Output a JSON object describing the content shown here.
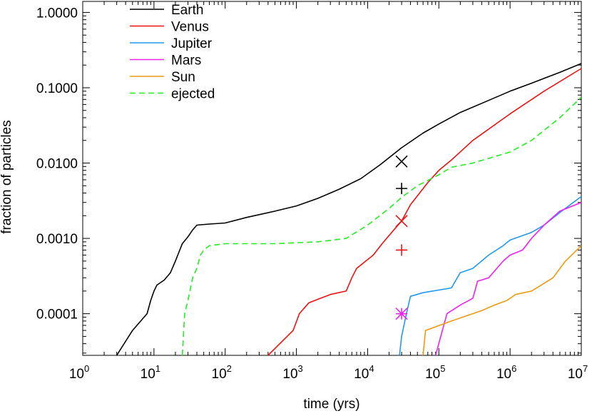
{
  "chart_data": {
    "type": "line",
    "title": "",
    "xlabel": "time (yrs)",
    "ylabel": "fraction of particles",
    "x_scale": "log",
    "y_scale": "log",
    "xlim": [
      1,
      10000000
    ],
    "ylim": [
      2.8e-05,
      1.4
    ],
    "grid": false,
    "legend_position": "top-left",
    "x_ticks": [
      {
        "value": 1,
        "base": "10",
        "exp": "0"
      },
      {
        "value": 10,
        "base": "10",
        "exp": "1"
      },
      {
        "value": 100,
        "base": "10",
        "exp": "2"
      },
      {
        "value": 1000,
        "base": "10",
        "exp": "3"
      },
      {
        "value": 10000,
        "base": "10",
        "exp": "4"
      },
      {
        "value": 100000,
        "base": "10",
        "exp": "5"
      },
      {
        "value": 1000000,
        "base": "10",
        "exp": "6"
      },
      {
        "value": 10000000,
        "base": "10",
        "exp": "7"
      }
    ],
    "y_ticks": [
      {
        "value": 0.0001,
        "label": "0.0001"
      },
      {
        "value": 0.001,
        "label": "0.0010"
      },
      {
        "value": 0.01,
        "label": "0.0100"
      },
      {
        "value": 0.1,
        "label": "0.1000"
      },
      {
        "value": 1,
        "label": "1.0000"
      }
    ],
    "series": [
      {
        "name": "Earth",
        "color": "#000000",
        "dash": false,
        "points": [
          [
            3,
            2.8e-05
          ],
          [
            5,
            6e-05
          ],
          [
            8,
            0.0001
          ],
          [
            9,
            0.00015
          ],
          [
            10,
            0.0002
          ],
          [
            11,
            0.00024
          ],
          [
            14,
            0.00028
          ],
          [
            17,
            0.00035
          ],
          [
            20,
            0.0005
          ],
          [
            25,
            0.00085
          ],
          [
            30,
            0.00105
          ],
          [
            35,
            0.0013
          ],
          [
            40,
            0.0015
          ],
          [
            60,
            0.00155
          ],
          [
            100,
            0.0016
          ],
          [
            200,
            0.0019
          ],
          [
            500,
            0.0023
          ],
          [
            1000,
            0.0027
          ],
          [
            2000,
            0.0034
          ],
          [
            4000,
            0.0045
          ],
          [
            8000,
            0.0062
          ],
          [
            15000,
            0.0095
          ],
          [
            30000,
            0.016
          ],
          [
            60000,
            0.025
          ],
          [
            100000,
            0.033
          ],
          [
            200000,
            0.047
          ],
          [
            500000,
            0.068
          ],
          [
            1000000,
            0.09
          ],
          [
            2000000,
            0.115
          ],
          [
            5000000,
            0.16
          ],
          [
            10000000,
            0.21
          ]
        ]
      },
      {
        "name": "Venus",
        "color": "#ee1111",
        "dash": false,
        "points": [
          [
            400,
            2.8e-05
          ],
          [
            900,
            6e-05
          ],
          [
            1100,
            0.0001
          ],
          [
            1500,
            0.00014
          ],
          [
            3000,
            0.00018
          ],
          [
            5000,
            0.0002
          ],
          [
            6000,
            0.0003
          ],
          [
            7000,
            0.0004
          ],
          [
            12000,
            0.0006
          ],
          [
            16000,
            0.00085
          ],
          [
            25000,
            0.0014
          ],
          [
            30000,
            0.0017
          ],
          [
            40000,
            0.0028
          ],
          [
            70000,
            0.0055
          ],
          [
            100000,
            0.008
          ],
          [
            150000,
            0.011
          ],
          [
            300000,
            0.02
          ],
          [
            1000000,
            0.045
          ],
          [
            3000000,
            0.09
          ],
          [
            10000000,
            0.18
          ]
        ]
      },
      {
        "name": "Jupiter",
        "color": "#2299ee",
        "dash": false,
        "points": [
          [
            28000,
            2.8e-05
          ],
          [
            30000,
            5e-05
          ],
          [
            35000,
            0.0001
          ],
          [
            40000,
            0.00017
          ],
          [
            60000,
            0.00019
          ],
          [
            150000,
            0.00022
          ],
          [
            200000,
            0.00035
          ],
          [
            300000,
            0.0004
          ],
          [
            500000,
            0.0006
          ],
          [
            800000,
            0.0008
          ],
          [
            1000000,
            0.00095
          ],
          [
            2000000,
            0.0012
          ],
          [
            3000000,
            0.0015
          ],
          [
            5000000,
            0.0022
          ],
          [
            10000000,
            0.0036
          ]
        ]
      },
      {
        "name": "Mars",
        "color": "#ee22ee",
        "dash": false,
        "points": [
          [
            90000,
            2.8e-05
          ],
          [
            130000,
            0.0001
          ],
          [
            200000,
            0.00013
          ],
          [
            300000,
            0.00016
          ],
          [
            350000,
            0.00027
          ],
          [
            500000,
            0.0003
          ],
          [
            800000,
            0.0005
          ],
          [
            1000000,
            0.0006
          ],
          [
            1500000,
            0.0007
          ],
          [
            2000000,
            0.001
          ],
          [
            3000000,
            0.0015
          ],
          [
            5000000,
            0.0023
          ],
          [
            10000000,
            0.003
          ]
        ]
      },
      {
        "name": "Sun",
        "color": "#ee9911",
        "dash": false,
        "points": [
          [
            60000,
            2.8e-05
          ],
          [
            65000,
            6e-05
          ],
          [
            150000,
            8e-05
          ],
          [
            400000,
            0.00011
          ],
          [
            600000,
            0.00013
          ],
          [
            900000,
            0.00015
          ],
          [
            1200000,
            0.00018
          ],
          [
            2000000,
            0.0002
          ],
          [
            4000000,
            0.0003
          ],
          [
            6000000,
            0.0005
          ],
          [
            10000000,
            0.0008
          ]
        ]
      },
      {
        "name": "ejected",
        "color": "#22ee22",
        "dash": true,
        "points": [
          [
            25,
            2.8e-05
          ],
          [
            27,
            0.0001
          ],
          [
            30,
            0.00015
          ],
          [
            35,
            0.0003
          ],
          [
            40,
            0.0004
          ],
          [
            45,
            0.0006
          ],
          [
            50,
            0.0007
          ],
          [
            60,
            0.0008
          ],
          [
            100,
            0.00085
          ],
          [
            500,
            0.00085
          ],
          [
            2000,
            0.0009
          ],
          [
            5000,
            0.001
          ],
          [
            10000,
            0.0015
          ],
          [
            20000,
            0.0025
          ],
          [
            30000,
            0.0035
          ],
          [
            50000,
            0.005
          ],
          [
            100000,
            0.007
          ],
          [
            150000,
            0.0088
          ],
          [
            300000,
            0.01
          ],
          [
            1000000,
            0.014
          ],
          [
            2000000,
            0.02
          ],
          [
            5000000,
            0.04
          ],
          [
            10000000,
            0.075
          ]
        ]
      }
    ],
    "markers": [
      {
        "shape": "x",
        "x": 30000,
        "y": 0.0105,
        "color": "#000000"
      },
      {
        "shape": "plus",
        "x": 30000,
        "y": 0.0046,
        "color": "#000000"
      },
      {
        "shape": "x",
        "x": 30000,
        "y": 0.0017,
        "color": "#ee1111"
      },
      {
        "shape": "plus",
        "x": 30000,
        "y": 0.0007,
        "color": "#ee1111"
      },
      {
        "shape": "asterisk",
        "x": 30000,
        "y": 0.0001,
        "color": "#ee22ee"
      }
    ]
  }
}
